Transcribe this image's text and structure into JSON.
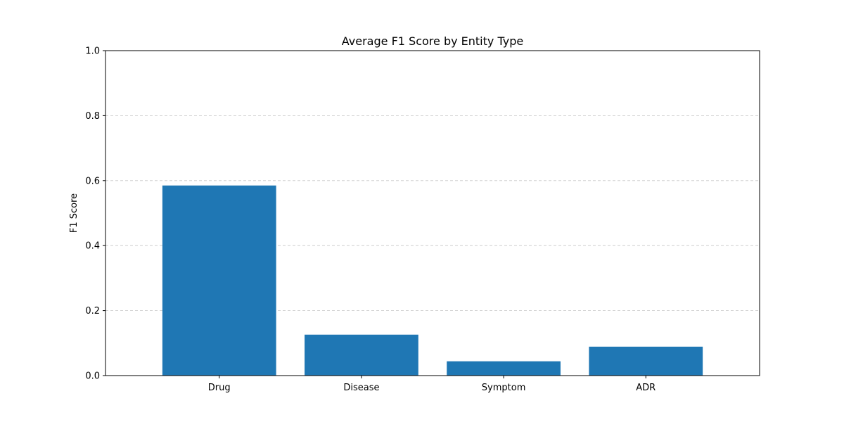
{
  "chart_data": {
    "type": "bar",
    "title": "Average F1 Score by Entity Type",
    "xlabel": "",
    "ylabel": "F1 Score",
    "categories": [
      "Drug",
      "Disease",
      "Symptom",
      "ADR"
    ],
    "values": [
      0.585,
      0.126,
      0.044,
      0.089
    ],
    "ylim": [
      0,
      1.0
    ],
    "yticks": [
      "0.0",
      "0.2",
      "0.4",
      "0.6",
      "0.8",
      "1.0"
    ],
    "grid": "horizontal dashed",
    "legend": "none",
    "bar_color": "#1f77b4"
  }
}
